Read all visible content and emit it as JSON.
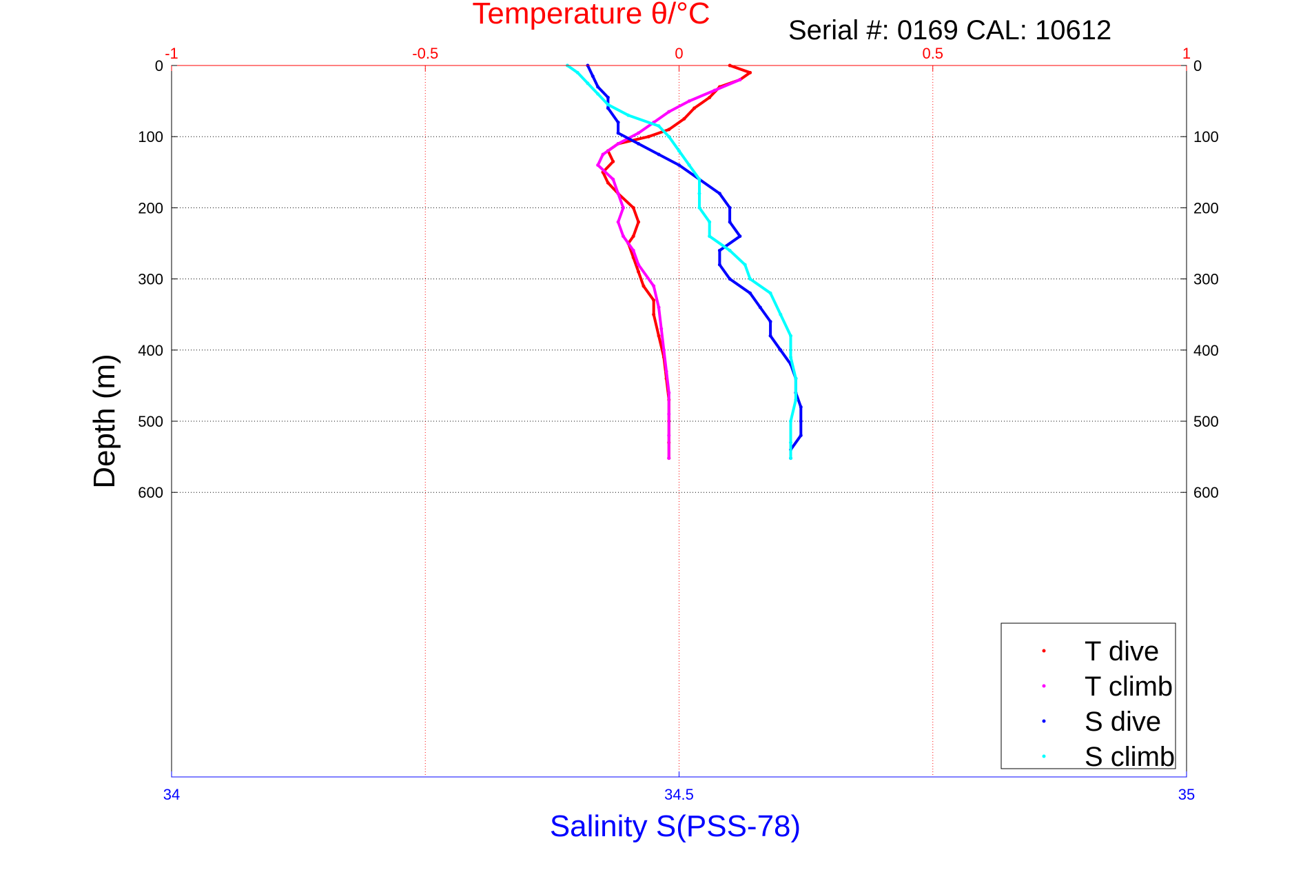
{
  "chart_data": {
    "type": "scatter",
    "title": "Temperature θ/°C",
    "serial_label": "Serial #: 0169 CAL: 10612",
    "ylabel": "Depth (m)",
    "xlabel": "Salinity S(PSS-78)",
    "top_axis": {
      "label": "Temperature θ/°C",
      "lim": [
        -1,
        1
      ],
      "ticks": [
        -1,
        -0.5,
        0,
        0.5,
        1
      ],
      "tick_labels": [
        "-1",
        "-0.5",
        "0",
        "0.5",
        "1"
      ],
      "color": "#ff0000"
    },
    "bottom_axis": {
      "label": "Salinity S(PSS-78)",
      "lim": [
        34,
        35
      ],
      "ticks": [
        34,
        34.5,
        35
      ],
      "tick_labels": [
        "34",
        "34.5",
        "35"
      ],
      "color": "#0000ff"
    },
    "y_axis": {
      "lim": [
        0,
        1000
      ],
      "reversed": true,
      "ticks": [
        0,
        100,
        200,
        300,
        400,
        500,
        600
      ],
      "tick_labels": [
        "0",
        "100",
        "200",
        "300",
        "400",
        "500",
        "600"
      ]
    },
    "grid": true,
    "legend_position": "bottom-right",
    "series": [
      {
        "name": "T dive",
        "axis": "top",
        "color": "#ff0000",
        "depth": [
          0,
          10,
          20,
          30,
          45,
          60,
          75,
          90,
          100,
          110,
          120,
          135,
          150,
          165,
          180,
          200,
          220,
          240,
          250,
          270,
          290,
          310,
          330,
          350,
          380,
          410,
          440,
          470,
          500,
          530,
          552
        ],
        "value": [
          0.1,
          0.14,
          0.12,
          0.08,
          0.06,
          0.03,
          0.01,
          -0.02,
          -0.06,
          -0.12,
          -0.14,
          -0.13,
          -0.15,
          -0.14,
          -0.12,
          -0.09,
          -0.08,
          -0.09,
          -0.1,
          -0.09,
          -0.08,
          -0.07,
          -0.05,
          -0.05,
          -0.04,
          -0.03,
          -0.025,
          -0.02,
          -0.02,
          -0.02,
          -0.02
        ]
      },
      {
        "name": "T climb",
        "axis": "top",
        "color": "#ff00ff",
        "depth": [
          552,
          520,
          490,
          460,
          430,
          400,
          370,
          340,
          310,
          280,
          260,
          240,
          220,
          200,
          180,
          160,
          140,
          125,
          110,
          95,
          80,
          65,
          50,
          35,
          20
        ],
        "value": [
          -0.02,
          -0.02,
          -0.02,
          -0.02,
          -0.025,
          -0.03,
          -0.035,
          -0.04,
          -0.05,
          -0.08,
          -0.09,
          -0.11,
          -0.12,
          -0.11,
          -0.12,
          -0.13,
          -0.16,
          -0.15,
          -0.12,
          -0.08,
          -0.05,
          -0.02,
          0.02,
          0.07,
          0.12
        ]
      },
      {
        "name": "S dive",
        "axis": "bottom",
        "color": "#0000ff",
        "depth": [
          0,
          15,
          30,
          45,
          60,
          80,
          95,
          110,
          125,
          140,
          160,
          180,
          200,
          220,
          240,
          260,
          280,
          300,
          320,
          340,
          360,
          380,
          400,
          420,
          440,
          460,
          480,
          500,
          520,
          540,
          552
        ],
        "value": [
          34.41,
          34.415,
          34.42,
          34.43,
          34.43,
          34.44,
          34.44,
          34.46,
          34.48,
          34.5,
          34.52,
          34.54,
          34.55,
          34.55,
          34.56,
          34.54,
          34.54,
          34.55,
          34.57,
          34.58,
          34.59,
          34.59,
          34.6,
          34.61,
          34.615,
          34.615,
          34.62,
          34.62,
          34.62,
          34.61,
          34.61
        ]
      },
      {
        "name": "S climb",
        "axis": "bottom",
        "color": "#00ffff",
        "depth": [
          552,
          530,
          500,
          470,
          440,
          410,
          380,
          350,
          320,
          300,
          280,
          260,
          240,
          220,
          200,
          180,
          160,
          140,
          120,
          100,
          85,
          70,
          55,
          40,
          25,
          10,
          0
        ],
        "value": [
          34.61,
          34.61,
          34.61,
          34.615,
          34.615,
          34.61,
          34.61,
          34.6,
          34.59,
          34.57,
          34.565,
          34.55,
          34.53,
          34.53,
          34.52,
          34.52,
          34.52,
          34.51,
          34.5,
          34.49,
          34.48,
          34.45,
          34.43,
          34.42,
          34.41,
          34.4,
          34.39
        ]
      }
    ]
  }
}
